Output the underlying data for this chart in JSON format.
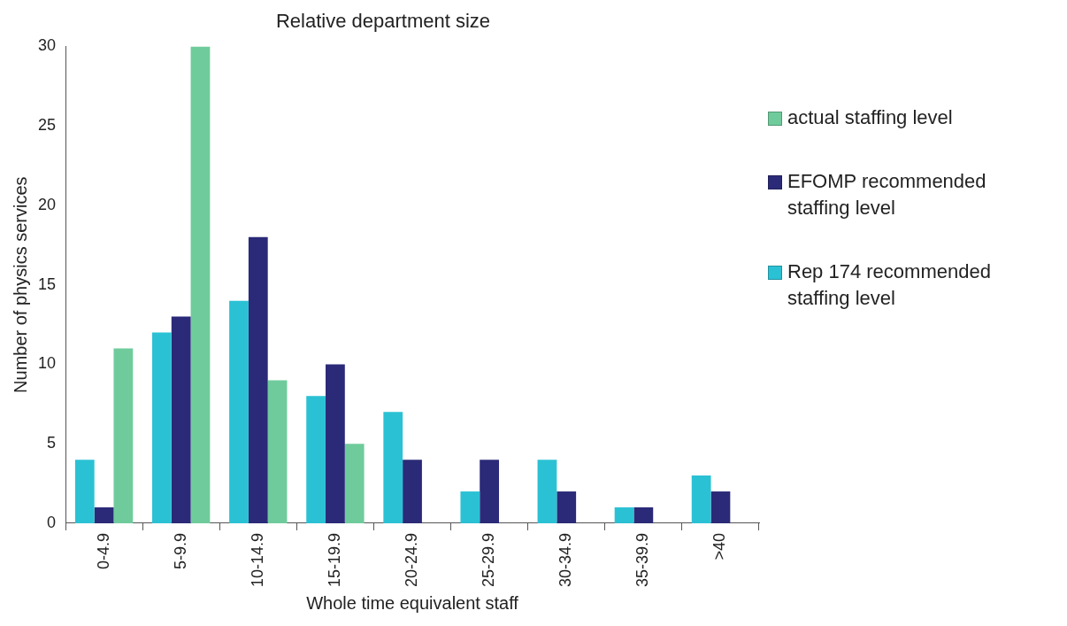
{
  "chart_data": {
    "type": "bar",
    "title": "Relative department size",
    "xlabel": "Whole time equivalent staff",
    "ylabel": "Number of physics services",
    "categories": [
      "0-4.9",
      "5-9.9",
      "10-14.9",
      "15-19.9",
      "20-24.9",
      "25-29.9",
      "30-34.9",
      "35-39.9",
      ">40"
    ],
    "series": [
      {
        "name": "Rep 174 recommended staffing level",
        "color": "#2bc1d4",
        "values": [
          4,
          12,
          14,
          8,
          7,
          2,
          4,
          1,
          3
        ]
      },
      {
        "name": "EFOMP recommended staffing level",
        "color": "#2b2a78",
        "values": [
          1,
          13,
          18,
          10,
          4,
          4,
          2,
          1,
          2
        ]
      },
      {
        "name": "actual staffing level",
        "color": "#6fcb9b",
        "values": [
          11,
          30,
          9,
          5,
          0,
          0,
          0,
          0,
          0
        ]
      }
    ],
    "ylim": [
      0,
      30
    ],
    "yticks": [
      0,
      5,
      10,
      15,
      20,
      25,
      30
    ],
    "grid": false,
    "legend": "right"
  }
}
